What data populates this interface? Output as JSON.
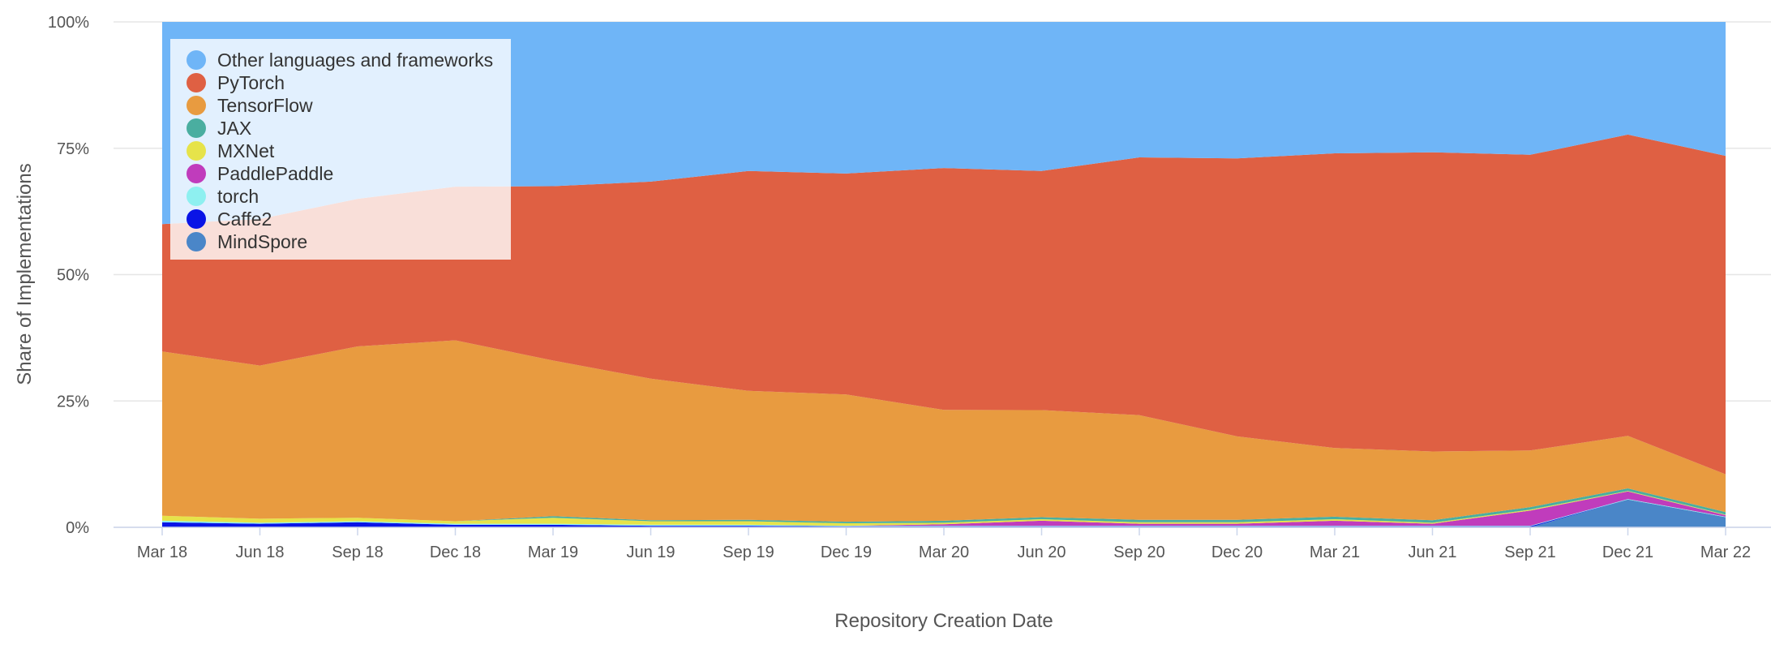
{
  "chart_data": {
    "type": "area",
    "stacked": true,
    "normalized": true,
    "title": "",
    "xlabel": "Repository Creation Date",
    "ylabel": "Share of Implementations",
    "x": [
      "Mar 18",
      "Jun 18",
      "Sep 18",
      "Dec 18",
      "Mar 19",
      "Jun 19",
      "Sep 19",
      "Dec 19",
      "Mar 20",
      "Jun 20",
      "Sep 20",
      "Dec 20",
      "Mar 21",
      "Jun 21",
      "Sep 21",
      "Dec 21",
      "Mar 22"
    ],
    "y_ticks": [
      "0%",
      "25%",
      "50%",
      "75%",
      "100%"
    ],
    "ylim": [
      0,
      100
    ],
    "grid": true,
    "legend_position": "top-left",
    "series": [
      {
        "name": "MindSpore",
        "color": "#4a86c8",
        "values": [
          0,
          0,
          0,
          0,
          0,
          0,
          0,
          0,
          0,
          0,
          0,
          0,
          0,
          0,
          0,
          5.5,
          2.0
        ]
      },
      {
        "name": "Caffe2",
        "color": "#0a14e6",
        "values": [
          1.0,
          0.7,
          1.0,
          0.5,
          0.5,
          0.3,
          0.3,
          0.2,
          0.2,
          0.2,
          0.2,
          0.2,
          0.2,
          0.2,
          0.2,
          0,
          0
        ]
      },
      {
        "name": "torch",
        "color": "#8ef0f0",
        "values": [
          0.3,
          0.2,
          0.2,
          0.2,
          0.2,
          0.2,
          0.2,
          0.1,
          0.1,
          0.1,
          0.1,
          0.1,
          0.1,
          0.1,
          0.1,
          0.1,
          0.1
        ]
      },
      {
        "name": "PaddlePaddle",
        "color": "#c03cbc",
        "values": [
          0,
          0,
          0,
          0,
          0,
          0,
          0,
          0,
          0.3,
          1.0,
          0.4,
          0.4,
          1.0,
          0.4,
          3.0,
          1.5,
          0.3
        ]
      },
      {
        "name": "MXNet",
        "color": "#e6e34a",
        "values": [
          1.0,
          0.8,
          0.7,
          0.5,
          1.2,
          0.7,
          0.7,
          0.5,
          0.3,
          0.3,
          0.3,
          0.3,
          0.3,
          0.2,
          0.2,
          0.1,
          0.1
        ]
      },
      {
        "name": "JAX",
        "color": "#4aaea0",
        "values": [
          0,
          0,
          0,
          0,
          0.3,
          0.2,
          0.3,
          0.3,
          0.4,
          0.4,
          0.5,
          0.5,
          0.5,
          0.5,
          0.5,
          0.5,
          0.5
        ]
      },
      {
        "name": "TensorFlow",
        "color": "#e89b40",
        "values": [
          32.5,
          30.3,
          33.9,
          35.8,
          30.8,
          28.0,
          25.5,
          25.2,
          22.0,
          21.2,
          20.7,
          16.5,
          13.6,
          13.6,
          11.2,
          10.4,
          7.5
        ]
      },
      {
        "name": "PyTorch",
        "color": "#df6043",
        "values": [
          25.2,
          29.0,
          29.2,
          30.4,
          34.5,
          39.0,
          43.5,
          43.7,
          48.0,
          47.3,
          51.0,
          55.0,
          58.3,
          59.2,
          58.5,
          59.6,
          63.0
        ]
      },
      {
        "name": "Other languages and frameworks",
        "color": "#6fb5f7",
        "values": [
          40.0,
          39.0,
          35.0,
          32.6,
          32.5,
          31.6,
          29.5,
          30.0,
          29.0,
          29.5,
          26.8,
          27.0,
          26.0,
          25.8,
          26.3,
          22.3,
          26.5
        ]
      }
    ],
    "legend_order": [
      "Other languages and frameworks",
      "PyTorch",
      "TensorFlow",
      "JAX",
      "MXNet",
      "PaddlePaddle",
      "torch",
      "Caffe2",
      "MindSpore"
    ]
  }
}
